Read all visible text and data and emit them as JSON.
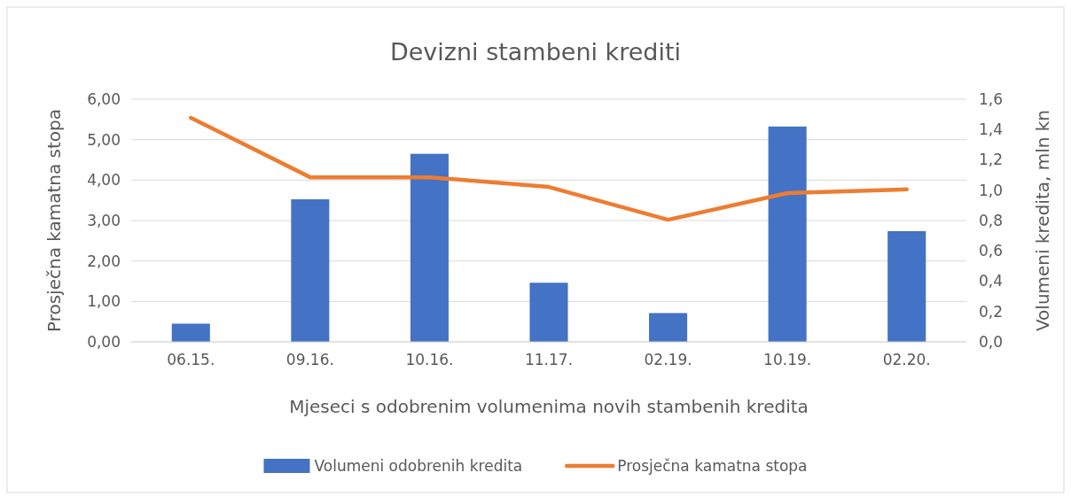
{
  "chart_data": {
    "type": "bar",
    "title": "Devizni stambeni krediti",
    "xlabel": "Mjeseci s odobrenim volumenima novih stambenih kredita",
    "ylabel": "Prosječna kamatna stopa",
    "y2label": "Volumeni kredita, mln kn",
    "categories": [
      "06.15.",
      "09.16.",
      "10.16.",
      "11.17.",
      "02.19.",
      "10.19.",
      "02.20."
    ],
    "series": [
      {
        "name": "Volumeni odobrenih kredita",
        "axis": "y2",
        "color": "#4472c4",
        "values": [
          0.12,
          0.94,
          1.24,
          0.39,
          0.19,
          1.42,
          0.73
        ]
      },
      {
        "name": "Prosječna kamatna stopa",
        "type": "line",
        "color": "#ed7d31",
        "values": [
          5.54,
          4.07,
          4.07,
          3.83,
          3.02,
          3.68,
          3.77
        ]
      }
    ],
    "ylim": [
      0,
      6
    ],
    "yticks": [
      {
        "value": 0,
        "label": "0,00"
      },
      {
        "value": 1,
        "label": "1,00"
      },
      {
        "value": 2,
        "label": "2,00"
      },
      {
        "value": 3,
        "label": "3,00"
      },
      {
        "value": 4,
        "label": "4,00"
      },
      {
        "value": 5,
        "label": "5,00"
      },
      {
        "value": 6,
        "label": "6,00"
      }
    ],
    "y2lim": [
      0,
      1.6
    ],
    "y2ticks": [
      {
        "value": 0,
        "label": "0,0"
      },
      {
        "value": 0.2,
        "label": "0,2"
      },
      {
        "value": 0.4,
        "label": "0,4"
      },
      {
        "value": 0.6,
        "label": "0,6"
      },
      {
        "value": 0.8,
        "label": "0,8"
      },
      {
        "value": 1,
        "label": "1,0"
      },
      {
        "value": 1.2,
        "label": "1,2"
      },
      {
        "value": 1.4,
        "label": "1,4"
      },
      {
        "value": 1.6,
        "label": "1,6"
      }
    ],
    "grid": "y",
    "legend": "bottom",
    "marker": "none",
    "line_style": "solid"
  }
}
